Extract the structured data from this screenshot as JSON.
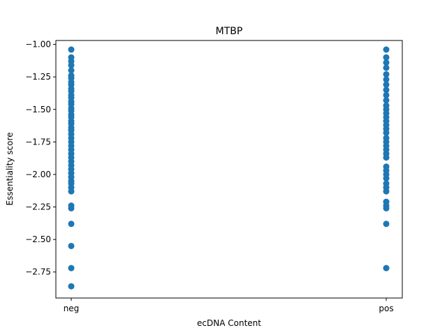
{
  "chart_data": {
    "type": "scatter",
    "title": "MTBP",
    "xlabel": "ecDNA Content",
    "ylabel": "Essentiality score",
    "categories": [
      "neg",
      "pos"
    ],
    "ylim": [
      -2.95,
      -0.97
    ],
    "yticks": [
      -1.0,
      -1.25,
      -1.5,
      -1.75,
      -2.0,
      -2.25,
      -2.5,
      -2.75
    ],
    "ytick_labels": [
      "−1.00",
      "−1.25",
      "−1.50",
      "−1.75",
      "−2.00",
      "−2.25",
      "−2.50",
      "−2.75"
    ],
    "grid": false,
    "marker_color": "#1f77b4",
    "series": [
      {
        "category": "neg",
        "values": [
          -1.04,
          -1.1,
          -1.13,
          -1.16,
          -1.2,
          -1.24,
          -1.26,
          -1.29,
          -1.31,
          -1.34,
          -1.36,
          -1.39,
          -1.41,
          -1.44,
          -1.46,
          -1.49,
          -1.51,
          -1.54,
          -1.56,
          -1.59,
          -1.61,
          -1.64,
          -1.66,
          -1.69,
          -1.72,
          -1.75,
          -1.78,
          -1.81,
          -1.84,
          -1.87,
          -1.9,
          -1.93,
          -1.96,
          -1.99,
          -2.02,
          -2.05,
          -2.07,
          -2.1,
          -2.13,
          -2.24,
          -2.26,
          -2.38,
          -2.55,
          -2.72,
          -2.86
        ]
      },
      {
        "category": "pos",
        "values": [
          -1.04,
          -1.1,
          -1.14,
          -1.18,
          -1.23,
          -1.27,
          -1.31,
          -1.35,
          -1.39,
          -1.43,
          -1.47,
          -1.5,
          -1.53,
          -1.56,
          -1.59,
          -1.62,
          -1.65,
          -1.68,
          -1.72,
          -1.75,
          -1.78,
          -1.81,
          -1.84,
          -1.87,
          -1.94,
          -1.97,
          -2.0,
          -2.03,
          -2.07,
          -2.1,
          -2.13,
          -2.21,
          -2.24,
          -2.26,
          -2.38,
          -2.72
        ]
      }
    ]
  }
}
